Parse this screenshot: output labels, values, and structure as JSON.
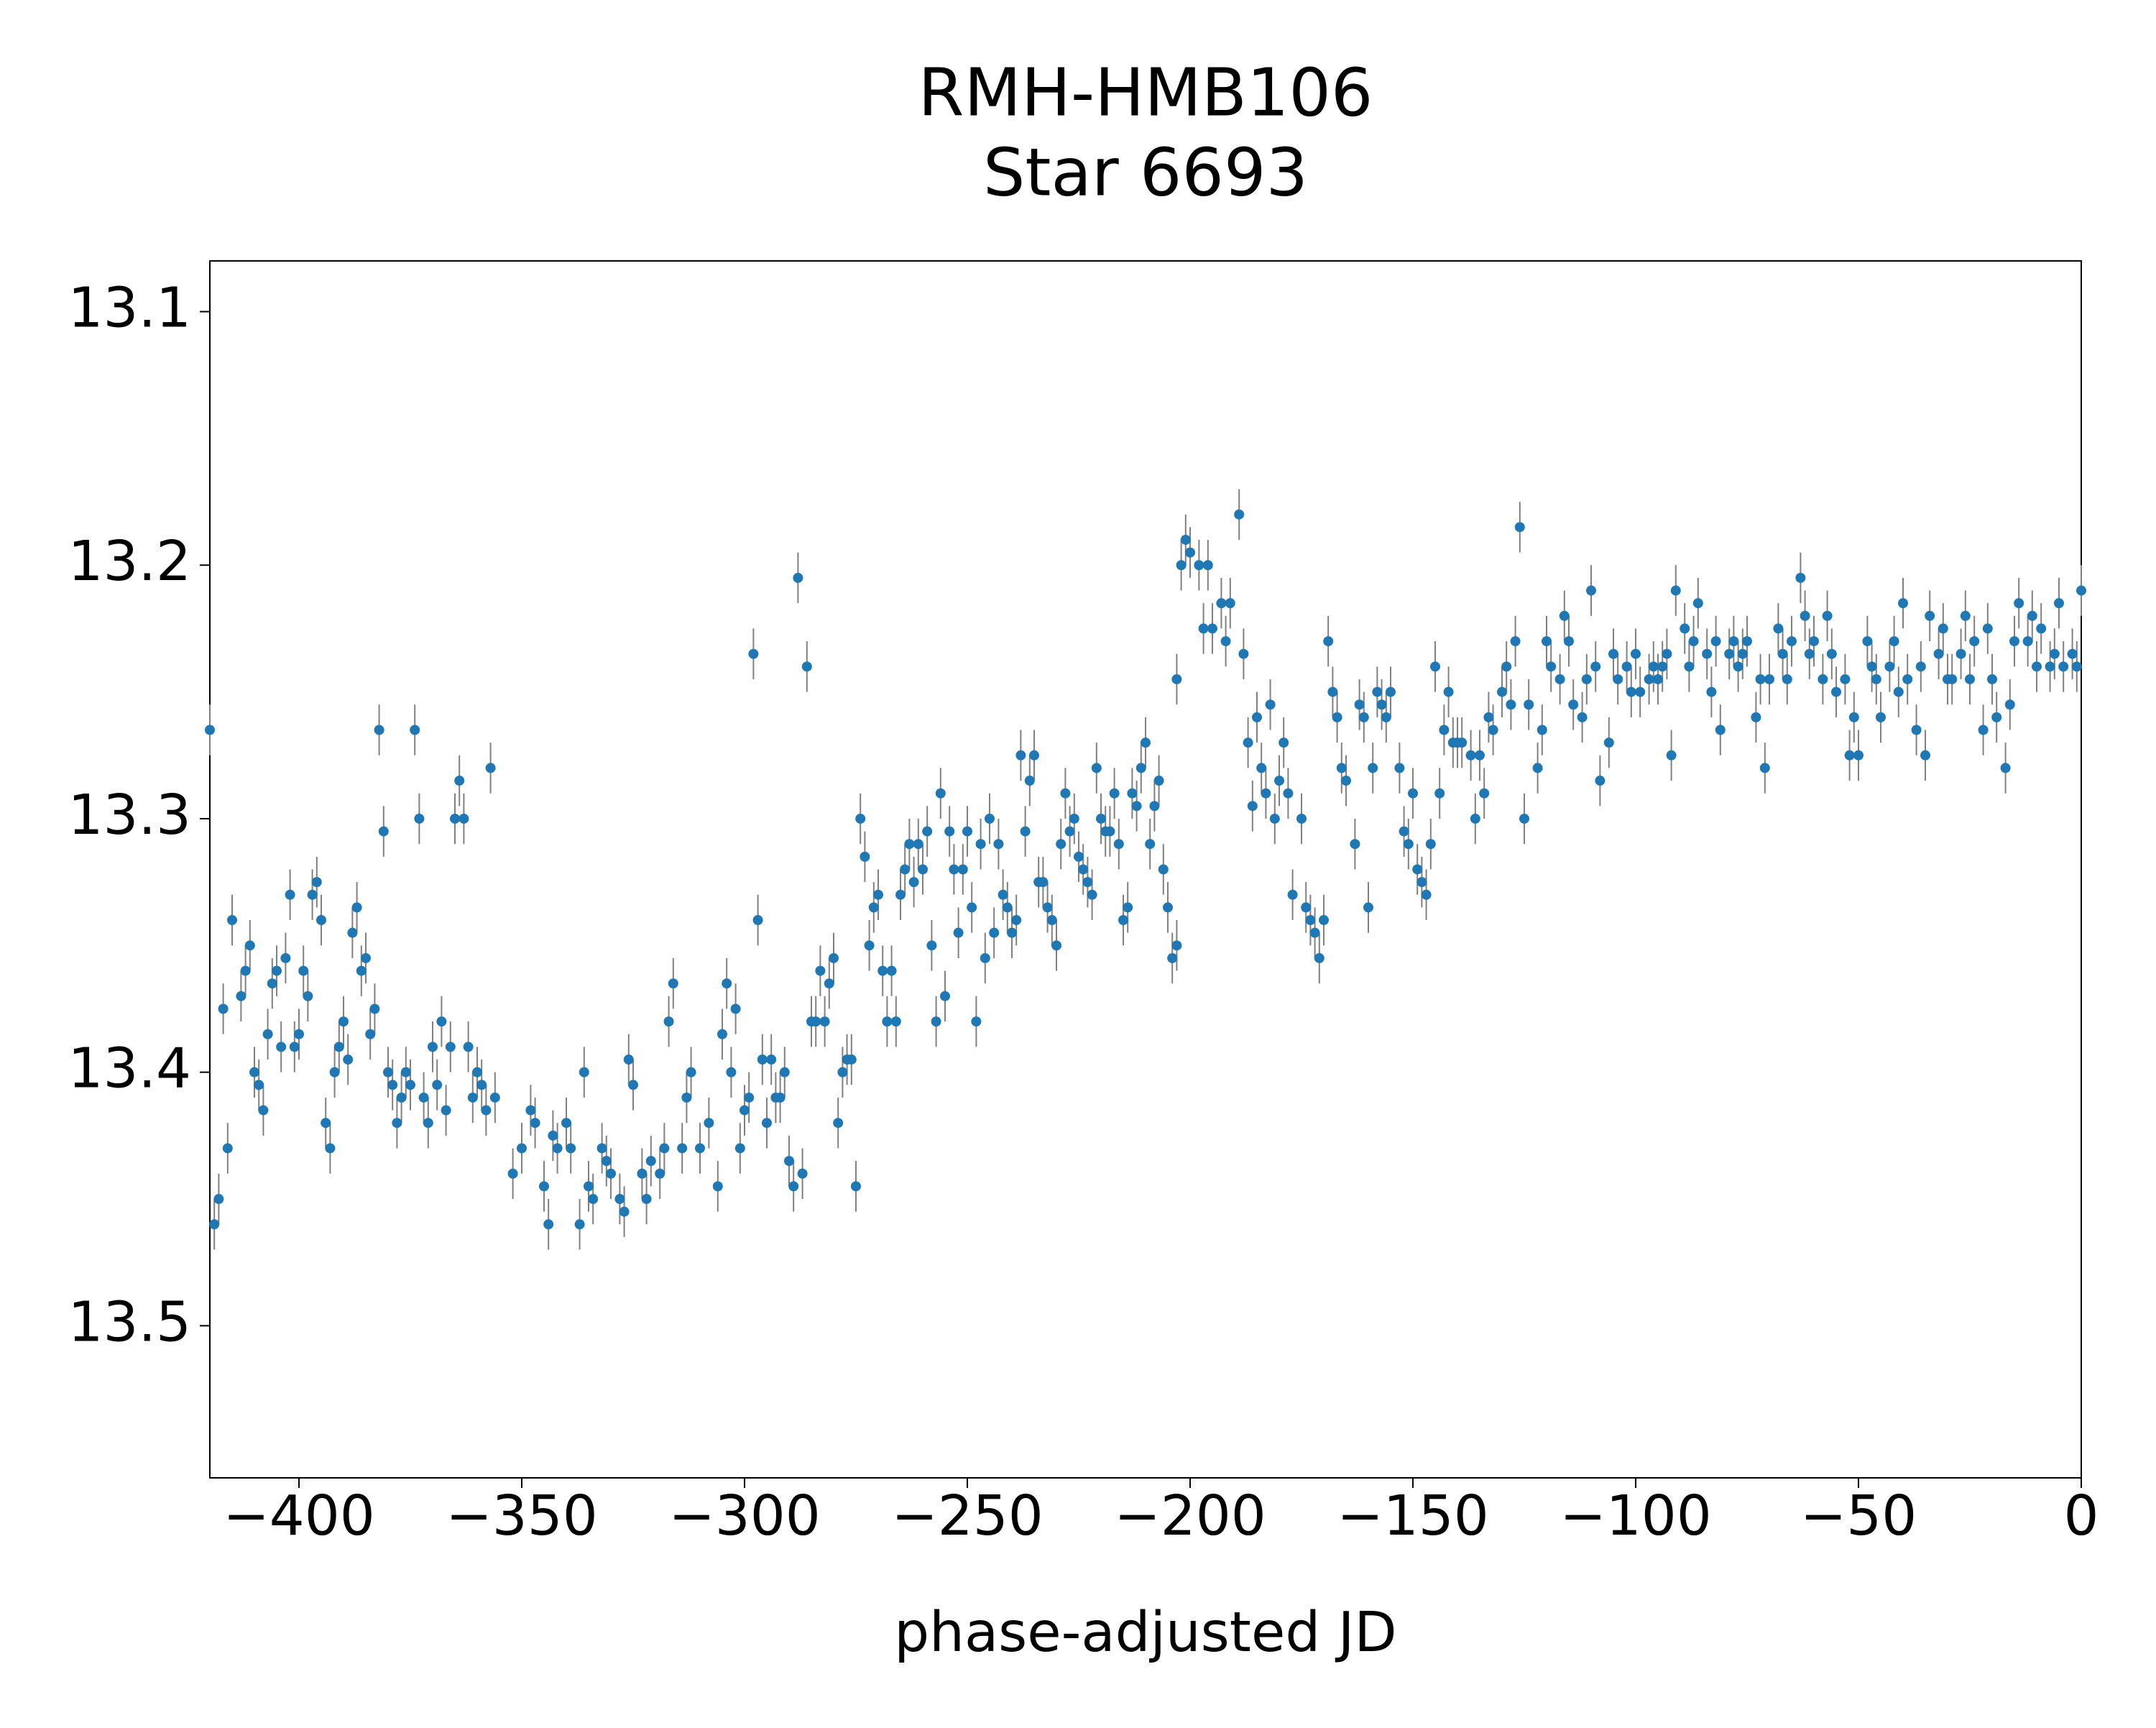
{
  "chart_data": {
    "type": "scatter",
    "title": [
      "RMH-HMB106",
      "Star 6693"
    ],
    "xlabel": "phase-adjusted JD",
    "color": "#1f77b4",
    "error_color": "#808080",
    "error": 0.01,
    "xlim": [
      -420,
      0
    ],
    "ylim": [
      13.08,
      13.56
    ],
    "y_inverted": true,
    "grid": false,
    "xticks": [
      {
        "value": -400,
        "label": "−400"
      },
      {
        "value": -350,
        "label": "−350"
      },
      {
        "value": -300,
        "label": "−300"
      },
      {
        "value": -250,
        "label": "−250"
      },
      {
        "value": -200,
        "label": "−200"
      },
      {
        "value": -150,
        "label": "−150"
      },
      {
        "value": -100,
        "label": "−100"
      },
      {
        "value": -50,
        "label": "−50"
      },
      0
    ],
    "yticks": [
      13.1,
      13.2,
      13.3,
      13.4,
      13.5
    ],
    "x": [
      -420,
      -419,
      -418,
      -417,
      -416,
      -415,
      -413,
      -412,
      -411,
      -410,
      -409,
      -408,
      -407,
      -406,
      -405,
      -404,
      -403,
      -402,
      -401,
      -400,
      -399,
      -398,
      -397,
      -396,
      -395,
      -394,
      -393,
      -392,
      -391,
      -390,
      -389,
      -388,
      -387,
      -386,
      -385,
      -384,
      -383,
      -382,
      -381,
      -380,
      -379,
      -378,
      -377,
      -376,
      -375,
      -374,
      -373,
      -372,
      -371,
      -370,
      -369,
      -368,
      -367,
      -366,
      -365,
      -364,
      -363,
      -362,
      -361,
      -360,
      -359,
      -358,
      -357,
      -356,
      -352,
      -350,
      -348,
      -347,
      -345,
      -344,
      -343,
      -342,
      -340,
      -339,
      -337,
      -336,
      -335,
      -334,
      -332,
      -331,
      -330,
      -328,
      -327,
      -326,
      -325,
      -323,
      -322,
      -321,
      -319,
      -318,
      -317,
      -316,
      -314,
      -313,
      -312,
      -310,
      -308,
      -306,
      -305,
      -304,
      -303,
      -302,
      -301,
      -300,
      -299,
      -298,
      -297,
      -296,
      -295,
      -294,
      -293,
      -292,
      -291,
      -290,
      -289,
      -288,
      -287,
      -286,
      -285,
      -284,
      -283,
      -282,
      -281,
      -280,
      -279,
      -278,
      -277,
      -276,
      -275,
      -274,
      -273,
      -272,
      -271,
      -270,
      -269,
      -268,
      -267,
      -266,
      -265,
      -264,
      -263,
      -262,
      -261,
      -260,
      -259,
      -258,
      -257,
      -256,
      -255,
      -254,
      -253,
      -252,
      -251,
      -250,
      -249,
      -248,
      -247,
      -246,
      -245,
      -244,
      -243,
      -242,
      -241,
      -240,
      -239,
      -238,
      -237,
      -236,
      -235,
      -234,
      -233,
      -232,
      -231,
      -230,
      -229,
      -228,
      -227,
      -226,
      -225,
      -224,
      -223,
      -222,
      -221,
      -220,
      -219,
      -218,
      -217,
      -216,
      -215,
      -214,
      -213,
      -212,
      -211,
      -210,
      -209,
      -208,
      -207,
      -206,
      -205,
      -204,
      -203,
      -203,
      -202,
      -201,
      -200,
      -198,
      -197,
      -196,
      -195,
      -193,
      -192,
      -191,
      -189,
      -188,
      -187,
      -186,
      -185,
      -184,
      -183,
      -182,
      -181,
      -180,
      -179,
      -178,
      -177,
      -175,
      -174,
      -173,
      -172,
      -171,
      -170,
      -169,
      -168,
      -167,
      -166,
      -165,
      -163,
      -162,
      -161,
      -160,
      -159,
      -158,
      -157,
      -156,
      -155,
      -153,
      -152,
      -151,
      -150,
      -149,
      -148,
      -147,
      -146,
      -145,
      -144,
      -143,
      -142,
      -141,
      -140,
      -139,
      -137,
      -136,
      -135,
      -134,
      -133,
      -132,
      -130,
      -129,
      -128,
      -127,
      -126,
      -125,
      -124,
      -122,
      -121,
      -120,
      -119,
      -117,
      -116,
      -115,
      -114,
      -112,
      -111,
      -110,
      -109,
      -108,
      -106,
      -105,
      -104,
      -102,
      -101,
      -100,
      -99,
      -97,
      -96,
      -95,
      -94,
      -93,
      -92,
      -91,
      -89,
      -88,
      -87,
      -86,
      -84,
      -83,
      -82,
      -81,
      -79,
      -78,
      -77,
      -76,
      -75,
      -73,
      -72,
      -71,
      -70,
      -68,
      -67,
      -66,
      -65,
      -63,
      -62,
      -61,
      -60,
      -58,
      -57,
      -56,
      -55,
      -53,
      -52,
      -51,
      -50,
      -48,
      -47,
      -46,
      -45,
      -43,
      -42,
      -41,
      -40,
      -39,
      -37,
      -36,
      -35,
      -34,
      -32,
      -31,
      -30,
      -29,
      -27,
      -26,
      -25,
      -24,
      -22,
      -21,
      -20,
      -19,
      -17,
      -16,
      -15,
      -14,
      -12,
      -11,
      -10,
      -9,
      -7,
      -6,
      -5,
      -4,
      -2,
      -1,
      0
    ],
    "values": [
      13.265,
      13.46,
      13.45,
      13.375,
      13.43,
      13.34,
      13.37,
      13.36,
      13.35,
      13.4,
      13.405,
      13.415,
      13.385,
      13.365,
      13.36,
      13.39,
      13.355,
      13.33,
      13.39,
      13.385,
      13.36,
      13.37,
      13.33,
      13.325,
      13.34,
      13.42,
      13.43,
      13.4,
      13.39,
      13.38,
      13.395,
      13.345,
      13.335,
      13.36,
      13.355,
      13.385,
      13.375,
      13.265,
      13.305,
      13.4,
      13.405,
      13.42,
      13.41,
      13.4,
      13.405,
      13.265,
      13.3,
      13.41,
      13.42,
      13.39,
      13.405,
      13.38,
      13.415,
      13.39,
      13.3,
      13.285,
      13.3,
      13.39,
      13.41,
      13.4,
      13.405,
      13.415,
      13.28,
      13.41,
      13.44,
      13.43,
      13.415,
      13.42,
      13.445,
      13.46,
      13.425,
      13.43,
      13.42,
      13.43,
      13.46,
      13.4,
      13.445,
      13.45,
      13.43,
      13.435,
      13.44,
      13.45,
      13.455,
      13.395,
      13.405,
      13.44,
      13.45,
      13.435,
      13.44,
      13.43,
      13.38,
      13.365,
      13.43,
      13.41,
      13.4,
      13.43,
      13.42,
      13.445,
      13.385,
      13.365,
      13.4,
      13.375,
      13.43,
      13.415,
      13.41,
      13.235,
      13.34,
      13.395,
      13.42,
      13.395,
      13.41,
      13.41,
      13.4,
      13.435,
      13.445,
      13.205,
      13.44,
      13.24,
      13.38,
      13.38,
      13.36,
      13.38,
      13.365,
      13.355,
      13.42,
      13.4,
      13.395,
      13.395,
      13.445,
      13.3,
      13.315,
      13.35,
      13.335,
      13.33,
      13.36,
      13.38,
      13.36,
      13.38,
      13.33,
      13.32,
      13.31,
      13.325,
      13.31,
      13.32,
      13.305,
      13.35,
      13.38,
      13.29,
      13.37,
      13.305,
      13.32,
      13.345,
      13.32,
      13.305,
      13.335,
      13.38,
      13.31,
      13.355,
      13.3,
      13.345,
      13.31,
      13.33,
      13.335,
      13.345,
      13.34,
      13.275,
      13.305,
      13.285,
      13.275,
      13.325,
      13.325,
      13.335,
      13.34,
      13.35,
      13.31,
      13.29,
      13.305,
      13.3,
      13.315,
      13.32,
      13.325,
      13.33,
      13.28,
      13.3,
      13.305,
      13.305,
      13.29,
      13.31,
      13.34,
      13.335,
      13.29,
      13.295,
      13.28,
      13.27,
      13.31,
      13.295,
      13.285,
      13.32,
      13.335,
      13.355,
      13.35,
      13.245,
      13.2,
      13.19,
      13.195,
      13.2,
      13.225,
      13.2,
      13.225,
      13.215,
      13.23,
      13.215,
      13.18,
      13.235,
      13.27,
      13.295,
      13.26,
      13.28,
      13.29,
      13.255,
      13.3,
      13.285,
      13.27,
      13.29,
      13.33,
      13.3,
      13.335,
      13.34,
      13.345,
      13.355,
      13.34,
      13.23,
      13.25,
      13.26,
      13.28,
      13.285,
      13.31,
      13.255,
      13.26,
      13.335,
      13.28,
      13.25,
      13.255,
      13.26,
      13.25,
      13.28,
      13.305,
      13.31,
      13.29,
      13.32,
      13.325,
      13.33,
      13.31,
      13.24,
      13.29,
      13.265,
      13.25,
      13.27,
      13.27,
      13.27,
      13.275,
      13.3,
      13.275,
      13.29,
      13.26,
      13.265,
      13.25,
      13.24,
      13.255,
      13.23,
      13.185,
      13.3,
      13.255,
      13.28,
      13.265,
      13.23,
      13.24,
      13.245,
      13.22,
      13.23,
      13.255,
      13.26,
      13.245,
      13.21,
      13.24,
      13.285,
      13.27,
      13.235,
      13.245,
      13.24,
      13.25,
      13.235,
      13.25,
      13.245,
      13.24,
      13.245,
      13.24,
      13.235,
      13.275,
      13.21,
      13.225,
      13.24,
      13.23,
      13.215,
      13.235,
      13.25,
      13.23,
      13.265,
      13.235,
      13.23,
      13.24,
      13.235,
      13.23,
      13.26,
      13.245,
      13.28,
      13.245,
      13.225,
      13.235,
      13.245,
      13.23,
      13.205,
      13.22,
      13.235,
      13.23,
      13.245,
      13.22,
      13.235,
      13.25,
      13.245,
      13.275,
      13.26,
      13.275,
      13.23,
      13.24,
      13.245,
      13.26,
      13.24,
      13.23,
      13.25,
      13.215,
      13.245,
      13.265,
      13.24,
      13.275,
      13.22,
      13.235,
      13.225,
      13.245,
      13.245,
      13.235,
      13.22,
      13.245,
      13.23,
      13.265,
      13.225,
      13.245,
      13.26,
      13.28,
      13.255,
      13.23,
      13.215,
      13.23,
      13.22,
      13.24,
      13.225,
      13.24,
      13.235,
      13.215,
      13.24,
      13.235,
      13.24,
      13.21
    ]
  }
}
